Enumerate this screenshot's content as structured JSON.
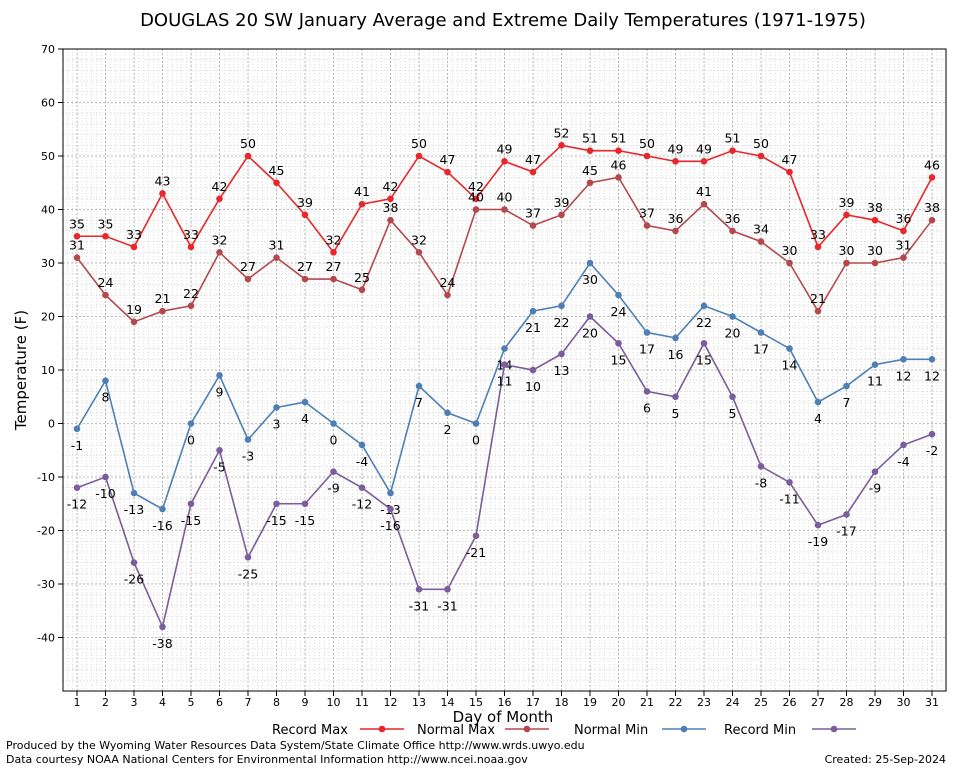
{
  "chart_data": {
    "type": "line",
    "title": "DOUGLAS 20 SW January Average and Extreme Daily Temperatures (1971-1975)",
    "xlabel": "Day of Month",
    "ylabel": "Temperature (F)",
    "ylim": [
      -50,
      70
    ],
    "yticks": [
      -40,
      -30,
      -20,
      -10,
      0,
      10,
      20,
      30,
      40,
      50,
      60,
      70
    ],
    "grid": true,
    "legend_position": "bottom",
    "x": [
      1,
      2,
      3,
      4,
      5,
      6,
      7,
      8,
      9,
      10,
      11,
      12,
      13,
      14,
      15,
      16,
      17,
      18,
      19,
      20,
      21,
      22,
      23,
      24,
      25,
      26,
      27,
      28,
      29,
      30,
      31
    ],
    "series": [
      {
        "name": "Record Max",
        "color": "#e8262b",
        "label_pos": "above",
        "values": [
          35,
          35,
          33,
          43,
          33,
          42,
          50,
          45,
          39,
          32,
          41,
          42,
          50,
          47,
          42,
          49,
          47,
          52,
          51,
          51,
          50,
          49,
          49,
          51,
          50,
          47,
          33,
          39,
          38,
          36,
          46
        ]
      },
      {
        "name": "Normal Max",
        "color": "#b5484d",
        "label_pos": "above",
        "values": [
          31,
          24,
          19,
          21,
          22,
          32,
          27,
          31,
          27,
          27,
          25,
          38,
          32,
          24,
          40,
          40,
          37,
          39,
          45,
          46,
          37,
          36,
          41,
          36,
          34,
          30,
          21,
          30,
          30,
          31,
          38
        ]
      },
      {
        "name": "Normal Min",
        "color": "#4d7fb5",
        "label_pos": "below",
        "values": [
          -1,
          8,
          -13,
          -16,
          0,
          9,
          -3,
          3,
          4,
          0,
          -4,
          -13,
          7,
          2,
          0,
          14,
          21,
          22,
          30,
          24,
          17,
          16,
          22,
          20,
          17,
          14,
          4,
          7,
          11,
          12,
          12
        ]
      },
      {
        "name": "Record Min",
        "color": "#7b5c9c",
        "label_pos": "below",
        "values": [
          -12,
          -10,
          -26,
          -38,
          -15,
          -5,
          -25,
          -15,
          -15,
          -9,
          -12,
          -16,
          -31,
          -31,
          -21,
          11,
          10,
          13,
          20,
          15,
          6,
          5,
          15,
          5,
          -8,
          -11,
          -19,
          -17,
          -9,
          -4,
          -2
        ]
      }
    ]
  },
  "footer": {
    "line1": "Produced by the Wyoming Water Resources Data System/State Climate Office http://www.wrds.uwyo.edu",
    "line2": "Data courtesy NOAA National Centers for Environmental Information http://www.ncei.noaa.gov",
    "created": "Created:  25-Sep-2024"
  }
}
